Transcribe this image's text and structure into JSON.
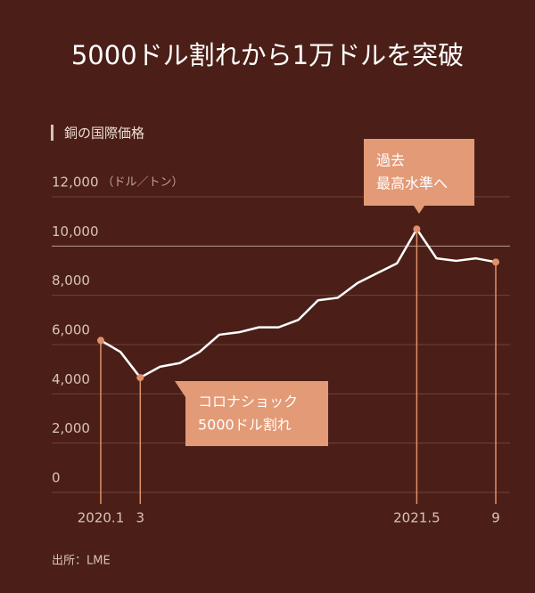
{
  "chart_data": {
    "type": "line",
    "title": "5000ドル割れから1万ドルを突破",
    "subtitle": "銅の国際価格",
    "y_unit": "（ドル／トン）",
    "source": "出所：LME",
    "categories": [
      "2020.1",
      null,
      "3",
      null,
      null,
      null,
      null,
      null,
      null,
      null,
      null,
      null,
      null,
      null,
      null,
      null,
      "2021.5",
      null,
      null,
      null,
      "9"
    ],
    "series": [
      {
        "color": "#ffffff",
        "values": [
          6170,
          5700,
          4660,
          5100,
          5250,
          5700,
          6400,
          6500,
          6700,
          6700,
          7000,
          7800,
          7900,
          8500,
          8900,
          9300,
          10690,
          9500,
          9400,
          9500,
          9350
        ]
      }
    ],
    "ylim": [
      0,
      12000
    ],
    "yticks": [
      0,
      {
        "value": 2000,
        "label": "2,000"
      },
      {
        "value": 4000,
        "label": "4,000"
      },
      {
        "value": 6000,
        "label": "6,000"
      },
      {
        "value": 8000,
        "label": "8,000"
      },
      {
        "value": 10000,
        "label": "10,000"
      },
      {
        "value": 12000,
        "label": "12,000"
      }
    ],
    "grid": true,
    "accent_color": "#e0906a",
    "annotations": [
      [
        "過去",
        "最高水準へ"
      ],
      [
        "コロナショック",
        "5000ドル割れ"
      ]
    ]
  }
}
